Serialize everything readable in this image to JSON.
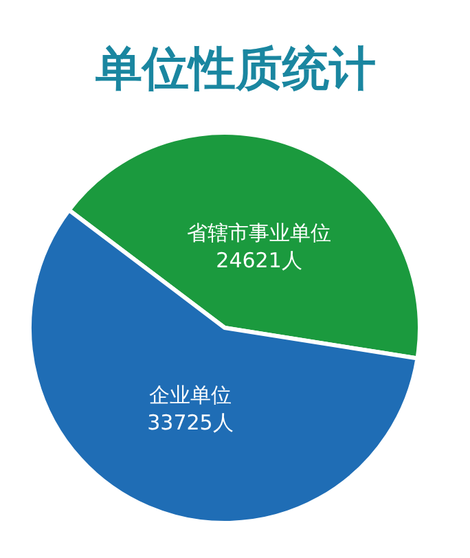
{
  "chart_data": {
    "type": "pie",
    "title": "单位性质统计",
    "categories": [
      "省辖市事业单位",
      "企业单位"
    ],
    "values": [
      24621,
      33725
    ],
    "value_labels": [
      "24621人",
      "33725人"
    ],
    "colors": [
      "#1b9a3e",
      "#1f6db5"
    ],
    "legend": false
  }
}
